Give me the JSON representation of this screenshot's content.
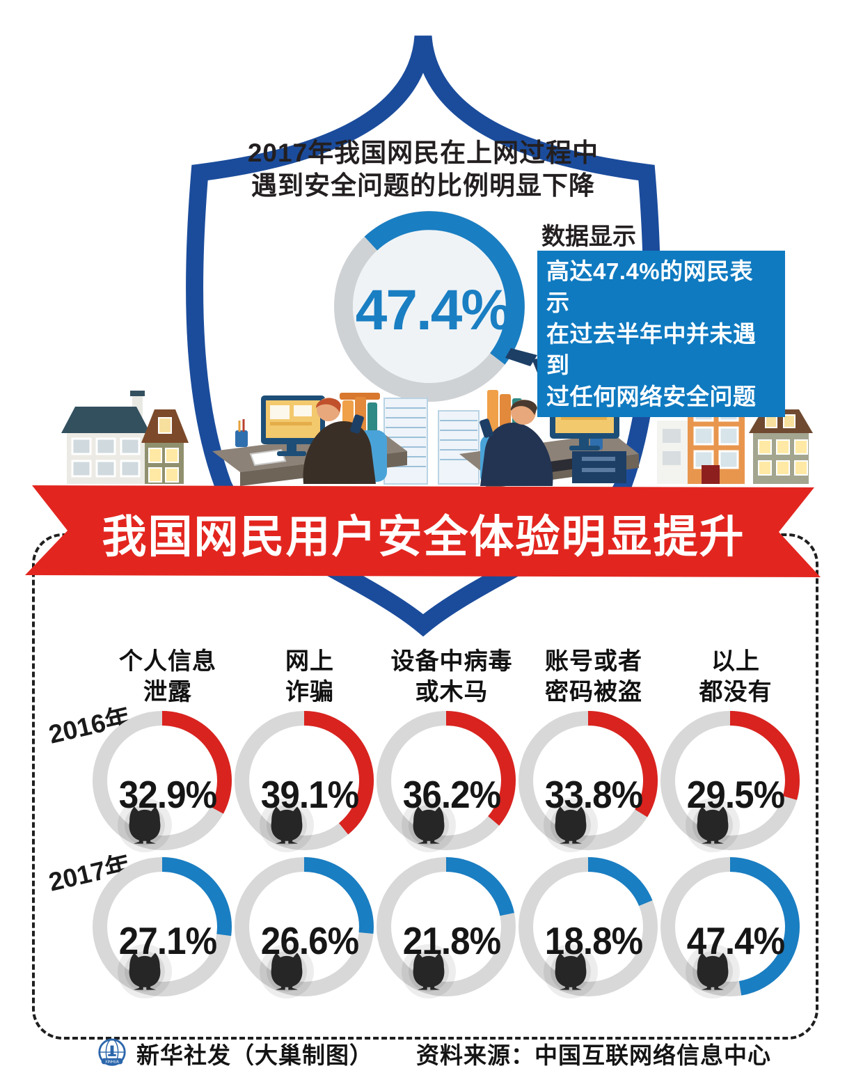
{
  "header": {
    "title": "2017年我国网民在上网过程中\n遇到安全问题的比例明显下降",
    "data_label": "数据显示",
    "callout": "高达47.4%的网民表示\n在过去半年中并未遇到\n过任何网络安全问题",
    "overall_value": "47.4%"
  },
  "banner": {
    "title": "我国网民用户安全体验明显提升"
  },
  "comparison": {
    "columns": [
      {
        "label": "个人信息\n泄露"
      },
      {
        "label": "网上\n诈骗"
      },
      {
        "label": "设备中病毒\n或木马"
      },
      {
        "label": "账号或者\n密码被盗"
      },
      {
        "label": "以上\n都没有"
      }
    ],
    "rows": [
      {
        "label": "2016年"
      },
      {
        "label": "2017年"
      }
    ]
  },
  "footer": {
    "credit": "新华社发（大巢制图）",
    "source": "资料来源：中国互联网络信息中心",
    "logo_text": "XINHUA"
  },
  "colors": {
    "shield_blue": "#1b4c9c",
    "chart_blue": "#1a7ec2",
    "box_blue": "#0f7ac0",
    "banner_red": "#e2261f",
    "arc_red": "#d9231f",
    "ring_gray": "#d8d8d8",
    "big_ring_gray": "#cfd2d5",
    "big_inner": "#eff3f6"
  },
  "chart_data": [
    {
      "type": "pie",
      "subtype": "donut",
      "title": "2017年我国网民在上网过程中遇到安全问题的比例明显下降",
      "value": 47.4,
      "label": "47.4%",
      "note": "高达47.4%的网民表示在过去半年中并未遇到过任何网络安全问题"
    },
    {
      "type": "pie",
      "subtype": "donut-grid",
      "title": "我国网民用户安全体验明显提升",
      "categories": [
        "个人信息泄露",
        "网上诈骗",
        "设备中病毒或木马",
        "账号或者密码被盗",
        "以上都没有"
      ],
      "series": [
        {
          "name": "2016年",
          "color": "#d9231f",
          "values": [
            32.9,
            39.1,
            36.2,
            33.8,
            29.5
          ]
        },
        {
          "name": "2017年",
          "color": "#1a7ec2",
          "values": [
            27.1,
            26.6,
            21.8,
            18.8,
            47.4
          ]
        }
      ],
      "value_suffix": "%",
      "source": "中国互联网络信息中心"
    }
  ]
}
